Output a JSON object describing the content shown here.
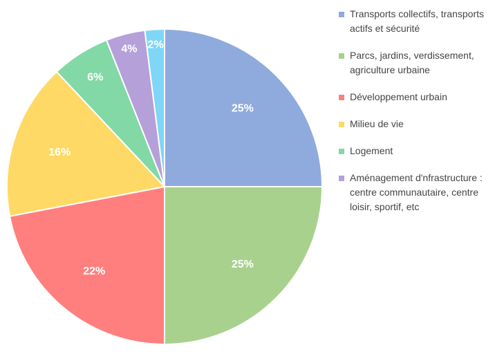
{
  "chart_data": {
    "type": "pie",
    "categories": [
      "Transports collectifs, transports actifs et sécurité",
      "Parcs, jardins, verdissement, agriculture urbaine",
      "Développement urbain",
      "Milieu de vie",
      "Logement",
      "Aménagement d'nfrastructure : centre communautaire, centre loisir, sportif, etc",
      null
    ],
    "values": [
      25,
      25,
      22,
      16,
      6,
      4,
      2
    ],
    "value_labels": [
      "25%",
      "25%",
      "22%",
      "16%",
      "6%",
      "4%",
      "2%"
    ],
    "colors": [
      "#8faadc",
      "#a9d18e",
      "#ff7f7f",
      "#ffd966",
      "#82d9a6",
      "#b5a0d9",
      "#7fd6f7"
    ],
    "legend": "right"
  }
}
